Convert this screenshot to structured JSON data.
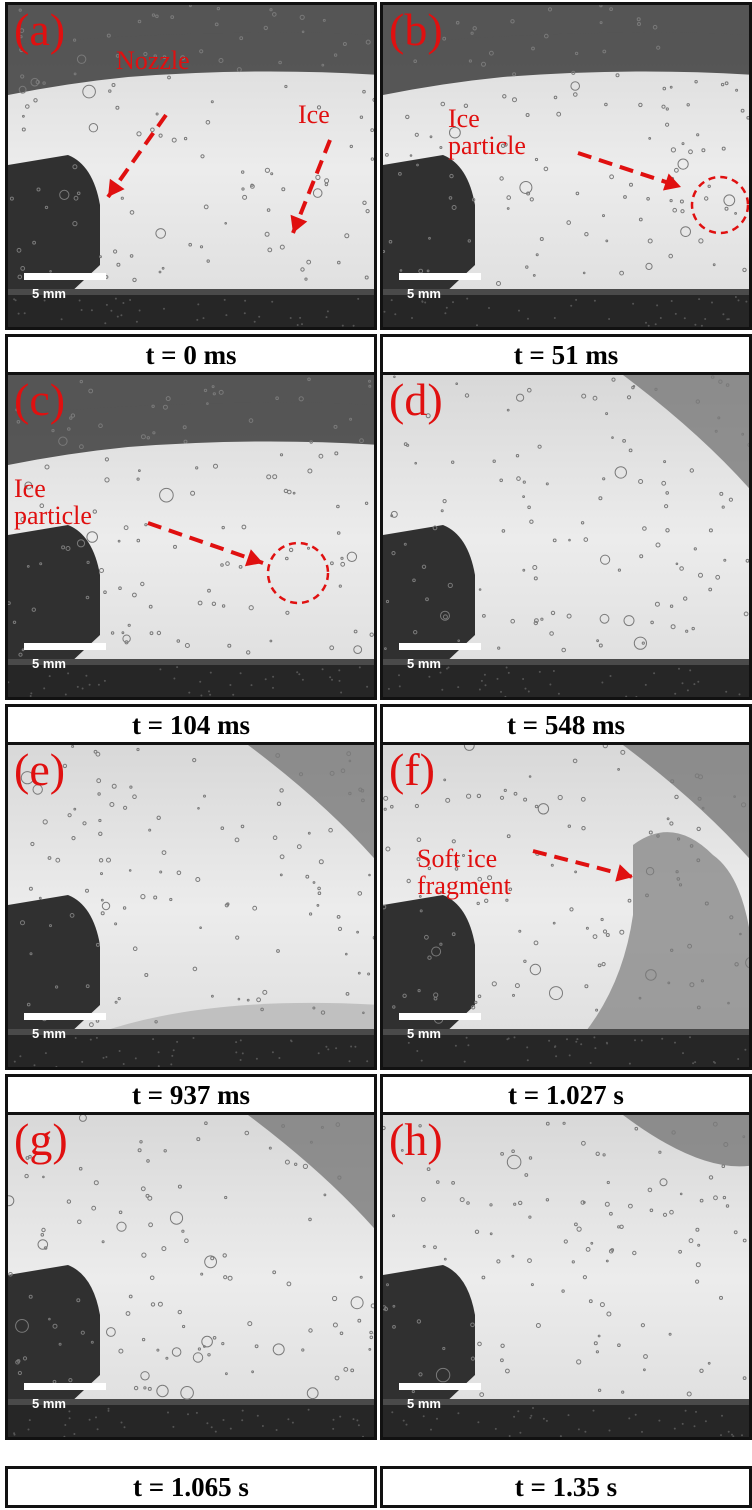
{
  "panels": [
    {
      "label": "(a)",
      "time": "t = 0 ms",
      "annotations": [
        "Nozzle",
        "Ice"
      ]
    },
    {
      "label": "(b)",
      "time": "t = 51 ms",
      "annotations": [
        "Ice\nparticle"
      ]
    },
    {
      "label": "(c)",
      "time": "t = 104 ms",
      "annotations": [
        "Ice\nparticle"
      ]
    },
    {
      "label": "(d)",
      "time": "t = 548 ms",
      "annotations": []
    },
    {
      "label": "(e)",
      "time": "t = 937 ms",
      "annotations": []
    },
    {
      "label": "(f)",
      "time": "t = 1.027 s",
      "annotations": [
        "Soft ice\nfragment"
      ]
    },
    {
      "label": "(g)",
      "time": "t = 1.065 s",
      "annotations": []
    },
    {
      "label": "(h)",
      "time": "t = 1.35 s",
      "annotations": []
    }
  ],
  "scale_bar": "5 mm",
  "colors": {
    "annotation": "#e01010",
    "frame": "#111111"
  }
}
